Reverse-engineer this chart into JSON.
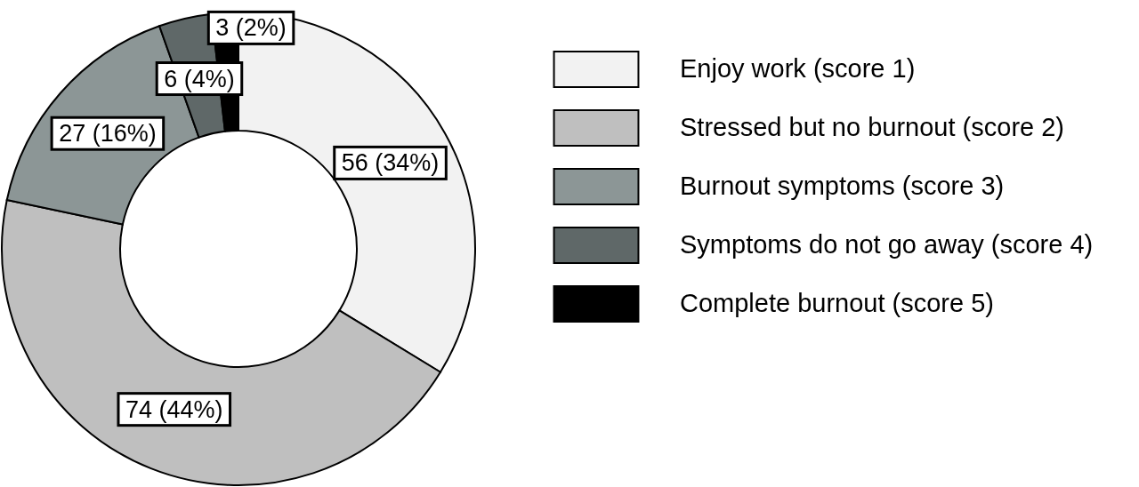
{
  "chart_data": {
    "type": "donut",
    "categories": [
      "Enjoy work (score 1)",
      "Stressed but no burnout (score 2)",
      "Burnout symptoms (score 3)",
      "Symptoms do not go away (score 4)",
      "Complete burnout (score 5)"
    ],
    "values": [
      56,
      74,
      27,
      6,
      3
    ],
    "value_labels": [
      "56 (34%)",
      "74 (44%)",
      "27 (16%)",
      "6 (4%)",
      "3 (2%)"
    ],
    "colors": [
      "#f2f2f2",
      "#bfbfbf",
      "#8c9696",
      "#5f6868",
      "#000000"
    ],
    "legend": "right"
  }
}
